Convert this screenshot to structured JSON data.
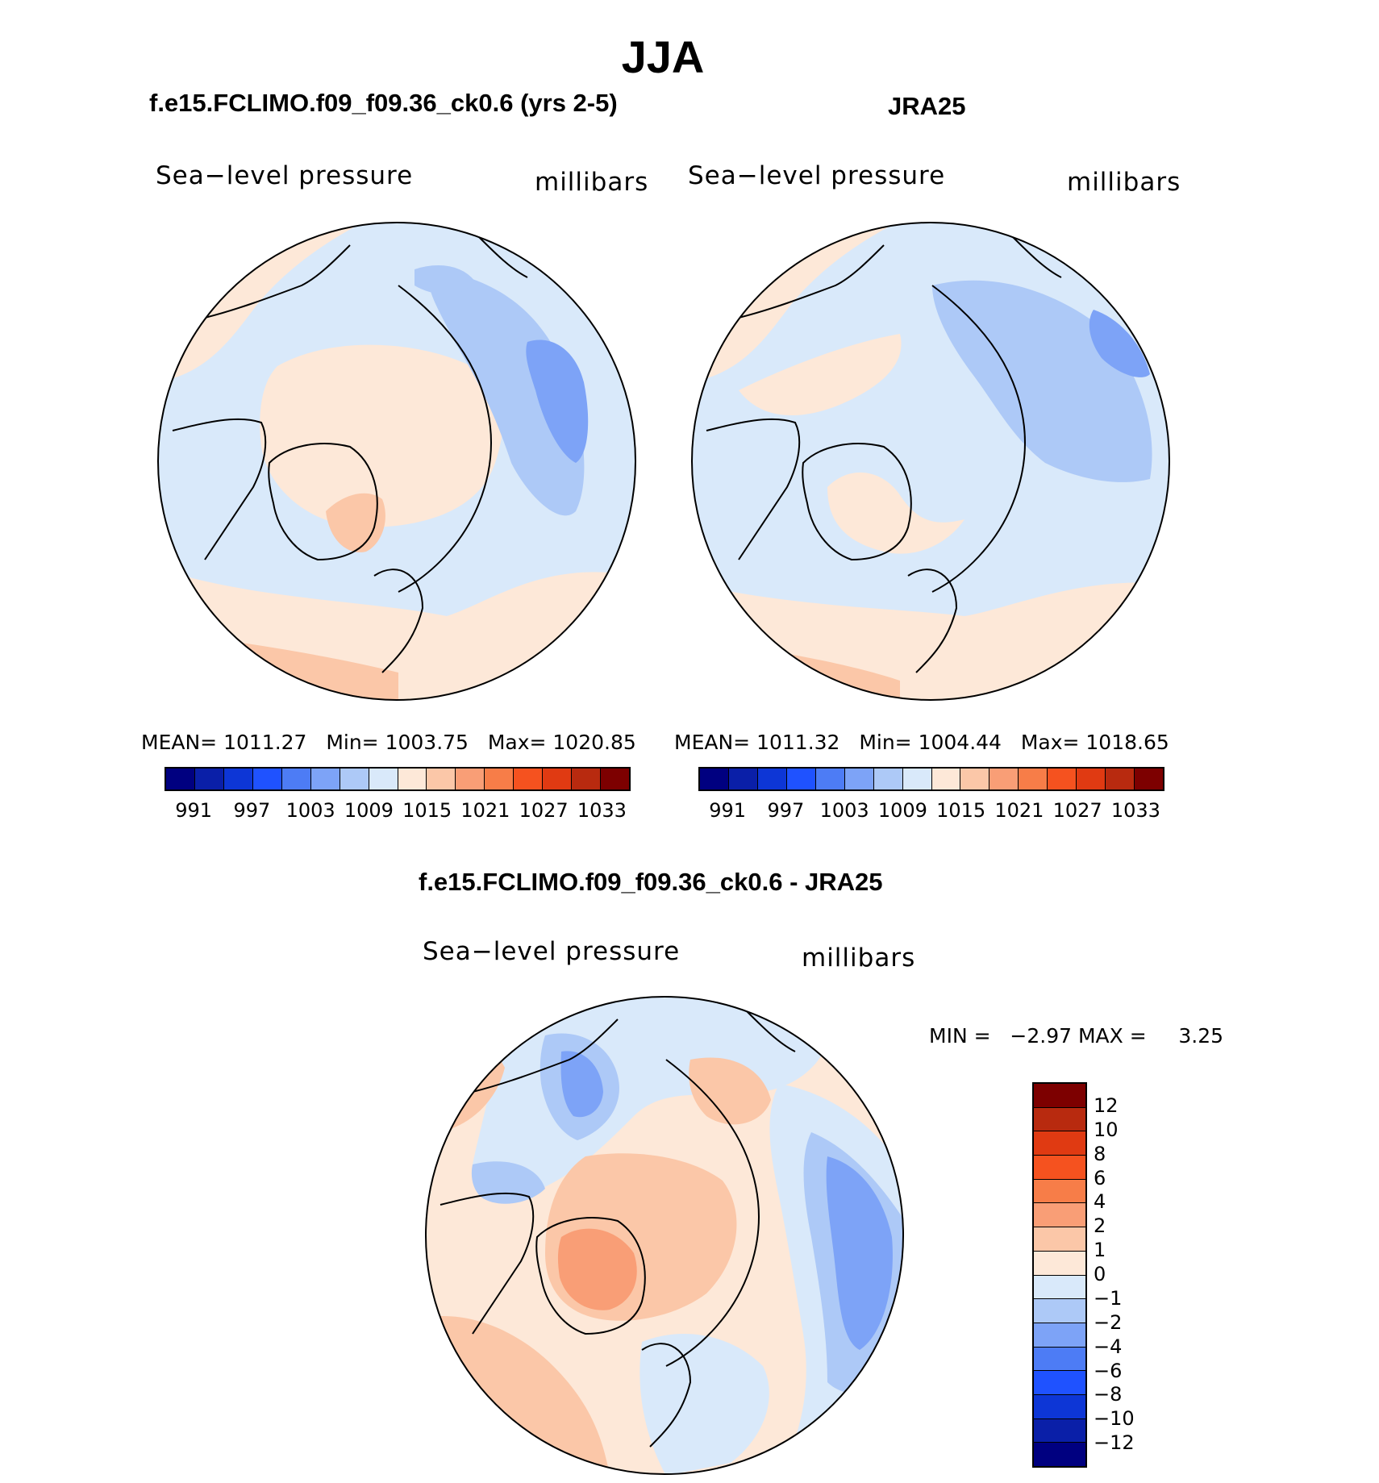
{
  "title": "JJA",
  "panels": [
    {
      "title": "f.e15.FCLIMO.f09_f09.36_ck0.6 (yrs 2-5)",
      "variable": "Sea−level pressure",
      "units": "millibars",
      "stats": {
        "mean_label": "MEAN=",
        "mean": "1011.27",
        "min_label": "Min=",
        "min": "1003.75",
        "max_label": "Max=",
        "max": "1020.85"
      }
    },
    {
      "title": "JRA25",
      "variable": "Sea−level pressure",
      "units": "millibars",
      "stats": {
        "mean_label": "MEAN=",
        "mean": "1011.32",
        "min_label": "Min=",
        "min": "1004.44",
        "max_label": "Max=",
        "max": "1018.65"
      }
    },
    {
      "title": "f.e15.FCLIMO.f09_f09.36_ck0.6 - JRA25",
      "variable": "Sea−level pressure",
      "units": "millibars",
      "stats": {
        "min_label": "MIN =",
        "min": "−2.97",
        "max_label": "MAX =",
        "max": "3.25"
      }
    }
  ],
  "colorbar_abs": {
    "colors": [
      "#000080",
      "#0a1fa8",
      "#0d36d6",
      "#1f52ff",
      "#4d7cf5",
      "#7da3f7",
      "#adc9f7",
      "#d9e9fa",
      "#fde8d8",
      "#fbc7a8",
      "#f99e76",
      "#f77d48",
      "#f5521f",
      "#e03a12",
      "#b82a0f",
      "#7d0000"
    ],
    "labels": [
      "991",
      "997",
      "1003",
      "1009",
      "1015",
      "1021",
      "1027",
      "1033"
    ]
  },
  "colorbar_diff": {
    "colors": [
      "#7d0000",
      "#b82a0f",
      "#e03a12",
      "#f5521f",
      "#f77d48",
      "#f99e76",
      "#fbc7a8",
      "#fde8d8",
      "#d9e9fa",
      "#adc9f7",
      "#7da3f7",
      "#4d7cf5",
      "#1f52ff",
      "#0d36d6",
      "#0a1fa8",
      "#000080"
    ],
    "labels": [
      "12",
      "10",
      "8",
      "6",
      "4",
      "2",
      "1",
      "0",
      "−1",
      "−2",
      "−4",
      "−6",
      "−8",
      "−10",
      "−12"
    ]
  },
  "map_colors": {
    "pale_blue": "#d9e9fa",
    "light_blue": "#adc9f7",
    "mid_blue": "#7da3f7",
    "pale_orange": "#fde8d8",
    "light_orange": "#fbc7a8",
    "mid_orange": "#f99e76",
    "coast": "#000000"
  }
}
